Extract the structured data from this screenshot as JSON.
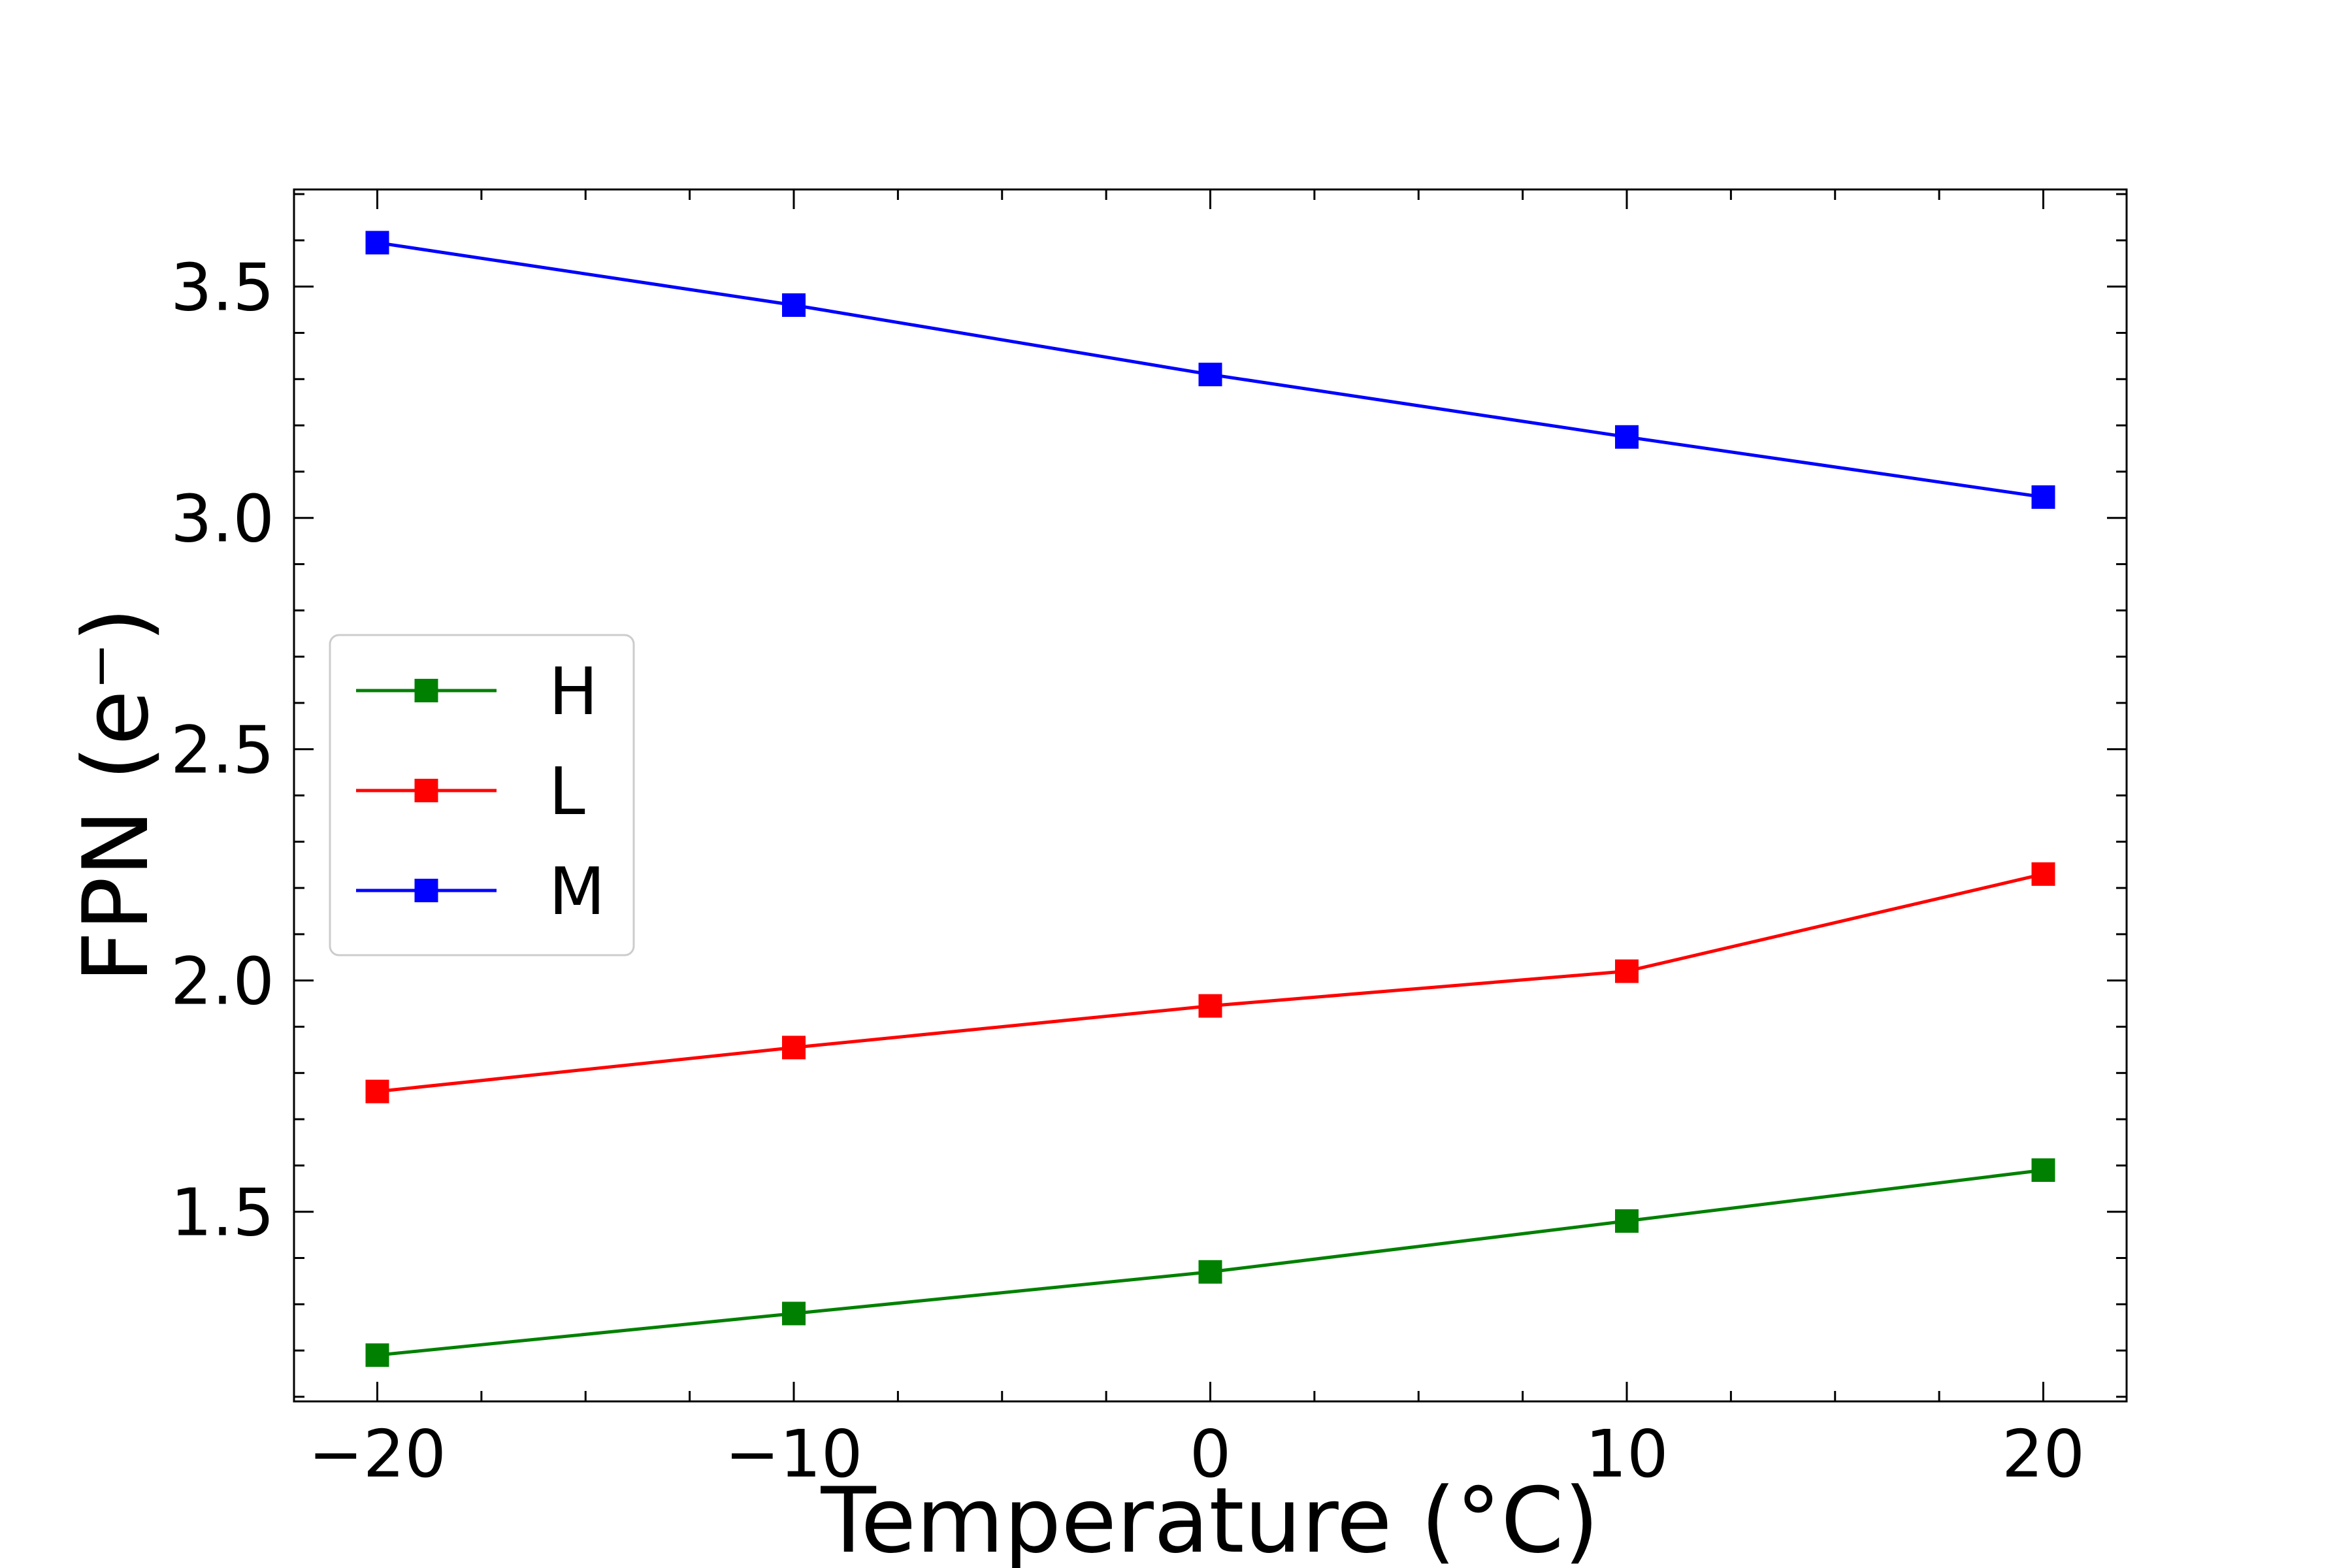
{
  "chart_data": {
    "type": "line",
    "title": "",
    "xlabel": "Temperature (°C)",
    "ylabel": "FPN (e⁻)",
    "x": [
      -20,
      -10,
      0,
      10,
      20
    ],
    "xlim": [
      -22,
      22
    ],
    "ylim": [
      1.09,
      3.71
    ],
    "xticks": [
      -20,
      -10,
      0,
      10,
      20
    ],
    "xtick_labels": [
      "−20",
      "−10",
      "0",
      "10",
      "20"
    ],
    "yticks": [
      1.5,
      2.0,
      2.5,
      3.0,
      3.5
    ],
    "ytick_labels": [
      "1.5",
      "2.0",
      "2.5",
      "3.0",
      "3.5"
    ],
    "grid": false,
    "legend_position": "center-left",
    "series": [
      {
        "name": "H",
        "color": "#008000",
        "marker": "square",
        "values": [
          1.19,
          1.28,
          1.37,
          1.48,
          1.59
        ]
      },
      {
        "name": "L",
        "color": "#ff0000",
        "marker": "square",
        "values": [
          1.76,
          1.855,
          1.945,
          2.02,
          2.23
        ]
      },
      {
        "name": "M",
        "color": "#0000ff",
        "marker": "square",
        "values": [
          3.595,
          3.46,
          3.31,
          3.175,
          3.045
        ]
      }
    ]
  }
}
